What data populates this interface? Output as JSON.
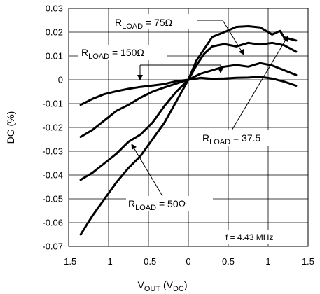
{
  "chart_data": {
    "type": "line",
    "xlabel": {
      "main": "V",
      "sub1": "OUT",
      "mid": " (V",
      "sub2": "DC",
      "end": ")"
    },
    "ylabel": "DG (%)",
    "xlim": [
      -1.5,
      1.5
    ],
    "ylim": [
      -0.07,
      0.03
    ],
    "xticks": [
      -1.5,
      -1,
      -0.5,
      0,
      0.5,
      1,
      1.5
    ],
    "xtick_labels": [
      "-1.5",
      "-1",
      "-0.5",
      "0",
      "0.5",
      "1",
      "1.5"
    ],
    "yticks": [
      0.03,
      0.02,
      0.01,
      0,
      -0.01,
      -0.02,
      -0.03,
      -0.04,
      -0.05,
      -0.06,
      -0.07
    ],
    "ytick_labels": [
      "0.03",
      "0.02",
      "0.01",
      "0",
      "-0.01",
      "-0.02",
      "-0.03",
      "-0.04",
      "-0.05",
      "-0.06",
      "-0.07"
    ],
    "grid": true,
    "series": [
      {
        "key": "r150",
        "color": "#000000",
        "x": [
          -1.35,
          -1.2,
          -1.05,
          -0.9,
          -0.75,
          -0.6,
          -0.45,
          -0.3,
          -0.15,
          0,
          0.15,
          0.3,
          0.45,
          0.6,
          0.75,
          0.9,
          1.05,
          1.2,
          1.35
        ],
        "y": [
          -0.0105,
          -0.008,
          -0.006,
          -0.0048,
          -0.0038,
          -0.003,
          -0.0024,
          -0.0018,
          -0.0006,
          0,
          0.0008,
          0.0004,
          0.0005,
          0.0008,
          0.0009,
          0.0012,
          0.0005,
          -0.0008,
          -0.0025
        ]
      },
      {
        "key": "r75",
        "color": "#000000",
        "x": [
          -1.35,
          -1.2,
          -1.05,
          -0.9,
          -0.75,
          -0.6,
          -0.45,
          -0.3,
          -0.15,
          0,
          0.15,
          0.3,
          0.45,
          0.6,
          0.75,
          0.9,
          1.05,
          1.2,
          1.35
        ],
        "y": [
          -0.024,
          -0.021,
          -0.017,
          -0.013,
          -0.0105,
          -0.0075,
          -0.005,
          -0.0032,
          -0.0016,
          0,
          0.0025,
          0.004,
          0.0055,
          0.0062,
          0.0055,
          0.007,
          0.006,
          0.004,
          0.002
        ]
      },
      {
        "key": "r37",
        "color": "#000000",
        "x": [
          -1.35,
          -1.2,
          -1.05,
          -0.9,
          -0.75,
          -0.6,
          -0.45,
          -0.3,
          -0.15,
          0,
          0.1,
          0.2,
          0.3,
          0.45,
          0.6,
          0.75,
          0.9,
          1.05,
          1.2,
          1.35
        ],
        "y": [
          -0.042,
          -0.039,
          -0.035,
          -0.031,
          -0.026,
          -0.023,
          -0.018,
          -0.011,
          -0.005,
          0,
          0.006,
          0.011,
          0.014,
          0.015,
          0.014,
          0.0155,
          0.0148,
          0.0155,
          0.0145,
          0.0118
        ]
      },
      {
        "key": "r50",
        "color": "#000000",
        "x": [
          -1.35,
          -1.2,
          -1.05,
          -0.9,
          -0.75,
          -0.6,
          -0.45,
          -0.3,
          -0.15,
          0,
          0.1,
          0.2,
          0.3,
          0.45,
          0.6,
          0.75,
          0.9,
          1.05,
          1.15,
          1.2,
          1.35
        ],
        "y": [
          -0.065,
          -0.057,
          -0.05,
          -0.043,
          -0.037,
          -0.032,
          -0.025,
          -0.018,
          -0.009,
          0,
          0.008,
          0.013,
          0.018,
          0.02,
          0.0222,
          0.0225,
          0.022,
          0.019,
          0.0205,
          0.0178,
          0.0165
        ]
      }
    ],
    "annotations": [
      {
        "key": "a75",
        "base": "R",
        "sub": "LOAD",
        "rest": " = 75Ω"
      },
      {
        "key": "a150",
        "base": "R",
        "sub": "LOAD",
        "rest": " = 150Ω"
      },
      {
        "key": "a37",
        "base": "R",
        "sub": "LOAD",
        "rest": " = 37.5"
      },
      {
        "key": "a50",
        "base": "R",
        "sub": "LOAD",
        "rest": " = 50Ω"
      }
    ],
    "note": "f = 4.43 MHz"
  }
}
